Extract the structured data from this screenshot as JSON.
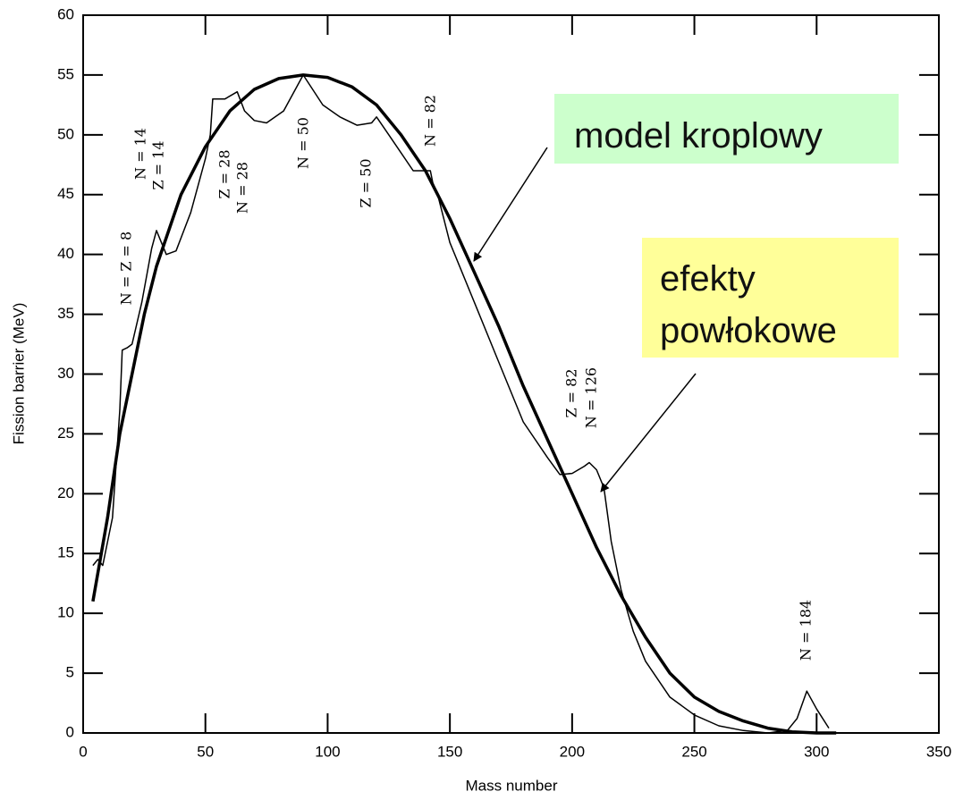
{
  "chart_data": {
    "type": "line",
    "xlabel": "Mass number",
    "ylabel": "Fission barrier (MeV)",
    "xlim": [
      0,
      350
    ],
    "xticks": [
      0,
      50,
      100,
      150,
      200,
      250,
      300,
      350
    ],
    "ylim": [
      0,
      60
    ],
    "yticks": [
      0,
      5,
      10,
      15,
      20,
      25,
      30,
      35,
      40,
      45,
      50,
      55,
      60
    ],
    "series": [
      {
        "name": "model kroplowy",
        "color": "#000000",
        "width": 3.5,
        "x": [
          4,
          10,
          15,
          20,
          25,
          30,
          40,
          50,
          60,
          70,
          80,
          90,
          100,
          110,
          120,
          130,
          140,
          145,
          150,
          160,
          170,
          180,
          190,
          200,
          210,
          220,
          230,
          240,
          250,
          260,
          270,
          280,
          290,
          300,
          308
        ],
        "values": [
          11,
          18,
          25,
          30,
          35,
          39,
          45,
          49,
          52,
          53.8,
          54.7,
          55,
          54.8,
          54,
          52.5,
          50,
          47,
          45,
          43,
          38.5,
          34,
          29,
          24.5,
          20,
          15.5,
          11.5,
          8,
          5,
          3,
          1.8,
          1,
          0.4,
          0.1,
          0,
          0
        ]
      },
      {
        "name": "efekty powłokowe",
        "color": "#000000",
        "width": 1.5,
        "x": [
          4,
          6,
          8,
          12,
          15,
          16,
          18,
          20,
          24,
          28,
          30,
          32,
          34,
          38,
          44,
          50,
          52,
          53,
          58,
          63,
          66,
          70,
          75,
          82,
          90,
          98,
          105,
          112,
          118,
          120,
          125,
          130,
          135,
          142,
          143,
          145,
          150,
          160,
          170,
          180,
          190,
          195,
          200,
          205,
          207,
          210,
          213,
          216,
          220,
          225,
          230,
          240,
          250,
          260,
          270,
          280,
          288,
          292,
          296,
          300,
          305
        ],
        "values": [
          14,
          14.5,
          14,
          18,
          27,
          32,
          32.2,
          32.5,
          36,
          40.5,
          42,
          41,
          40,
          40.3,
          43.5,
          48,
          50,
          53,
          53,
          53.6,
          52,
          51.2,
          51,
          52,
          55,
          52.5,
          51.5,
          50.8,
          51,
          51.5,
          50,
          48.5,
          47,
          47,
          46,
          45,
          41,
          36,
          31,
          26,
          23,
          21.6,
          21.7,
          22.3,
          22.6,
          22,
          20.5,
          16,
          12,
          8.5,
          6,
          3,
          1.5,
          0.6,
          0.2,
          0,
          0.2,
          1.2,
          3.5,
          2,
          0.4
        ]
      }
    ],
    "annotations": [
      "N = Z = 8",
      "N = 14",
      "Z = 14",
      "Z = 28",
      "N = 28",
      "N = 50",
      "Z = 50",
      "N = 82",
      "Z = 82",
      "N = 126",
      "N = 184"
    ],
    "grid": false
  }
}
